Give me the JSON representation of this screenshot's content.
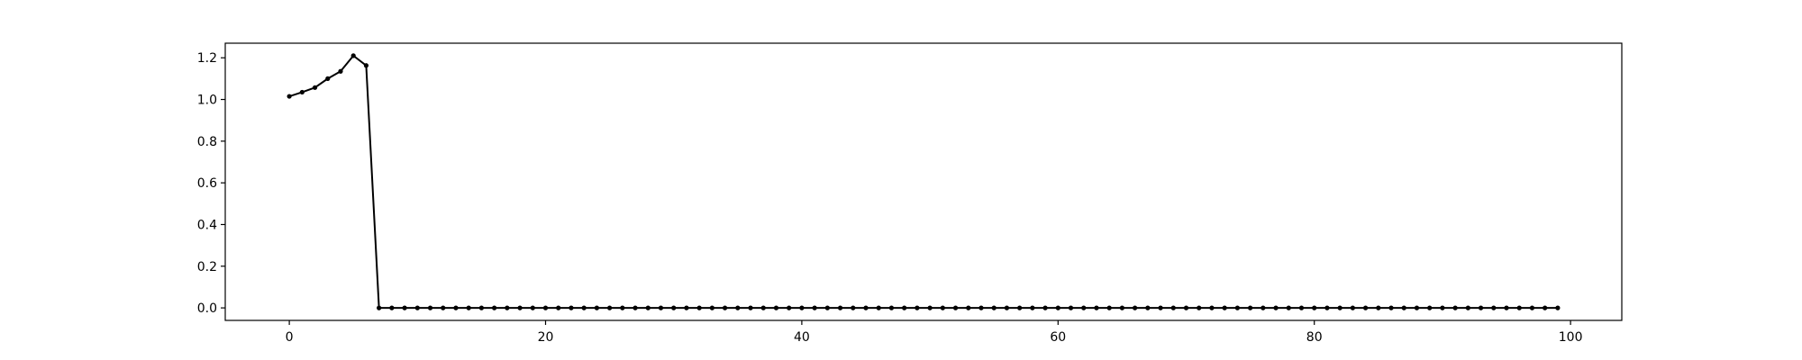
{
  "chart_data": {
    "type": "line",
    "title": "",
    "xlabel": "",
    "ylabel": "",
    "xlim": [
      -5,
      104
    ],
    "ylim": [
      -0.06,
      1.27
    ],
    "xticks": [
      0,
      20,
      40,
      60,
      80,
      100
    ],
    "xtick_labels": [
      "0",
      "20",
      "40",
      "60",
      "80",
      "100"
    ],
    "yticks": [
      0.0,
      0.2,
      0.4,
      0.6,
      0.8,
      1.0,
      1.2
    ],
    "ytick_labels": [
      "0.0",
      "0.2",
      "0.4",
      "0.6",
      "0.8",
      "1.0",
      "1.2"
    ],
    "grid": false,
    "legend": "none",
    "series": [
      {
        "color": "#000000",
        "marker": "circle",
        "x": [
          0,
          1,
          2,
          3,
          4,
          5,
          6,
          7,
          8,
          9,
          10,
          11,
          12,
          13,
          14,
          15,
          16,
          17,
          18,
          19,
          20,
          21,
          22,
          23,
          24,
          25,
          26,
          27,
          28,
          29,
          30,
          31,
          32,
          33,
          34,
          35,
          36,
          37,
          38,
          39,
          40,
          41,
          42,
          43,
          44,
          45,
          46,
          47,
          48,
          49,
          50,
          51,
          52,
          53,
          54,
          55,
          56,
          57,
          58,
          59,
          60,
          61,
          62,
          63,
          64,
          65,
          66,
          67,
          68,
          69,
          70,
          71,
          72,
          73,
          74,
          75,
          76,
          77,
          78,
          79,
          80,
          81,
          82,
          83,
          84,
          85,
          86,
          87,
          88,
          89,
          90,
          91,
          92,
          93,
          94,
          95,
          96,
          97,
          98,
          99
        ],
        "y": [
          1.015,
          1.035,
          1.057,
          1.1,
          1.135,
          1.21,
          1.163,
          0,
          0,
          0,
          0,
          0,
          0,
          0,
          0,
          0,
          0,
          0,
          0,
          0,
          0,
          0,
          0,
          0,
          0,
          0,
          0,
          0,
          0,
          0,
          0,
          0,
          0,
          0,
          0,
          0,
          0,
          0,
          0,
          0,
          0,
          0,
          0,
          0,
          0,
          0,
          0,
          0,
          0,
          0,
          0,
          0,
          0,
          0,
          0,
          0,
          0,
          0,
          0,
          0,
          0,
          0,
          0,
          0,
          0,
          0,
          0,
          0,
          0,
          0,
          0,
          0,
          0,
          0,
          0,
          0,
          0,
          0,
          0,
          0,
          0,
          0,
          0,
          0,
          0,
          0,
          0,
          0,
          0,
          0,
          0,
          0,
          0,
          0,
          0,
          0,
          0,
          0,
          0,
          0
        ]
      }
    ]
  }
}
